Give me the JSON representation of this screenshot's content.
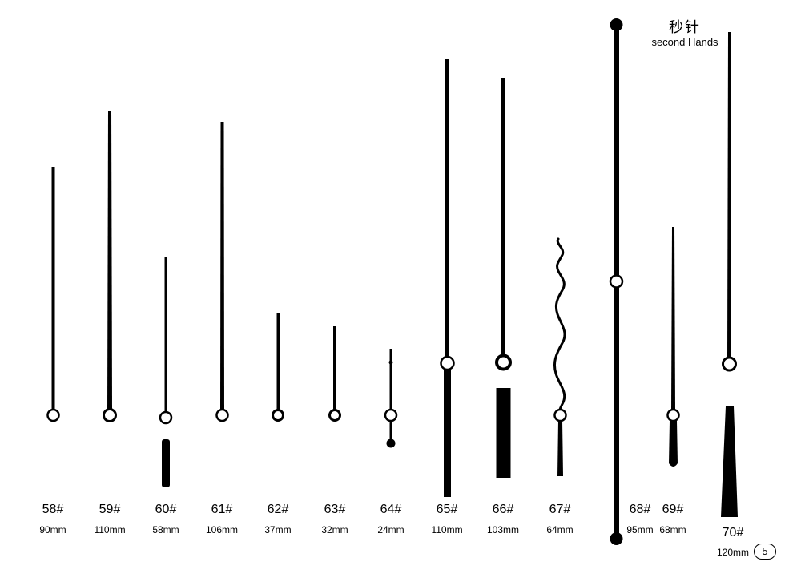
{
  "header": {
    "title_zh": "秒针",
    "title_en": "second Hands"
  },
  "hands": [
    {
      "code": "58#",
      "length": "90mm"
    },
    {
      "code": "59#",
      "length": "110mm"
    },
    {
      "code": "60#",
      "length": "58mm"
    },
    {
      "code": "61#",
      "length": "106mm"
    },
    {
      "code": "62#",
      "length": "37mm"
    },
    {
      "code": "63#",
      "length": "32mm"
    },
    {
      "code": "64#",
      "length": "24mm"
    },
    {
      "code": "65#",
      "length": "110mm"
    },
    {
      "code": "66#",
      "length": "103mm"
    },
    {
      "code": "67#",
      "length": "64mm"
    },
    {
      "code": "68#",
      "length": "95mm"
    },
    {
      "code": "69#",
      "length": "68mm"
    },
    {
      "code": "70#",
      "length": "120mm"
    }
  ],
  "page_number": "5"
}
